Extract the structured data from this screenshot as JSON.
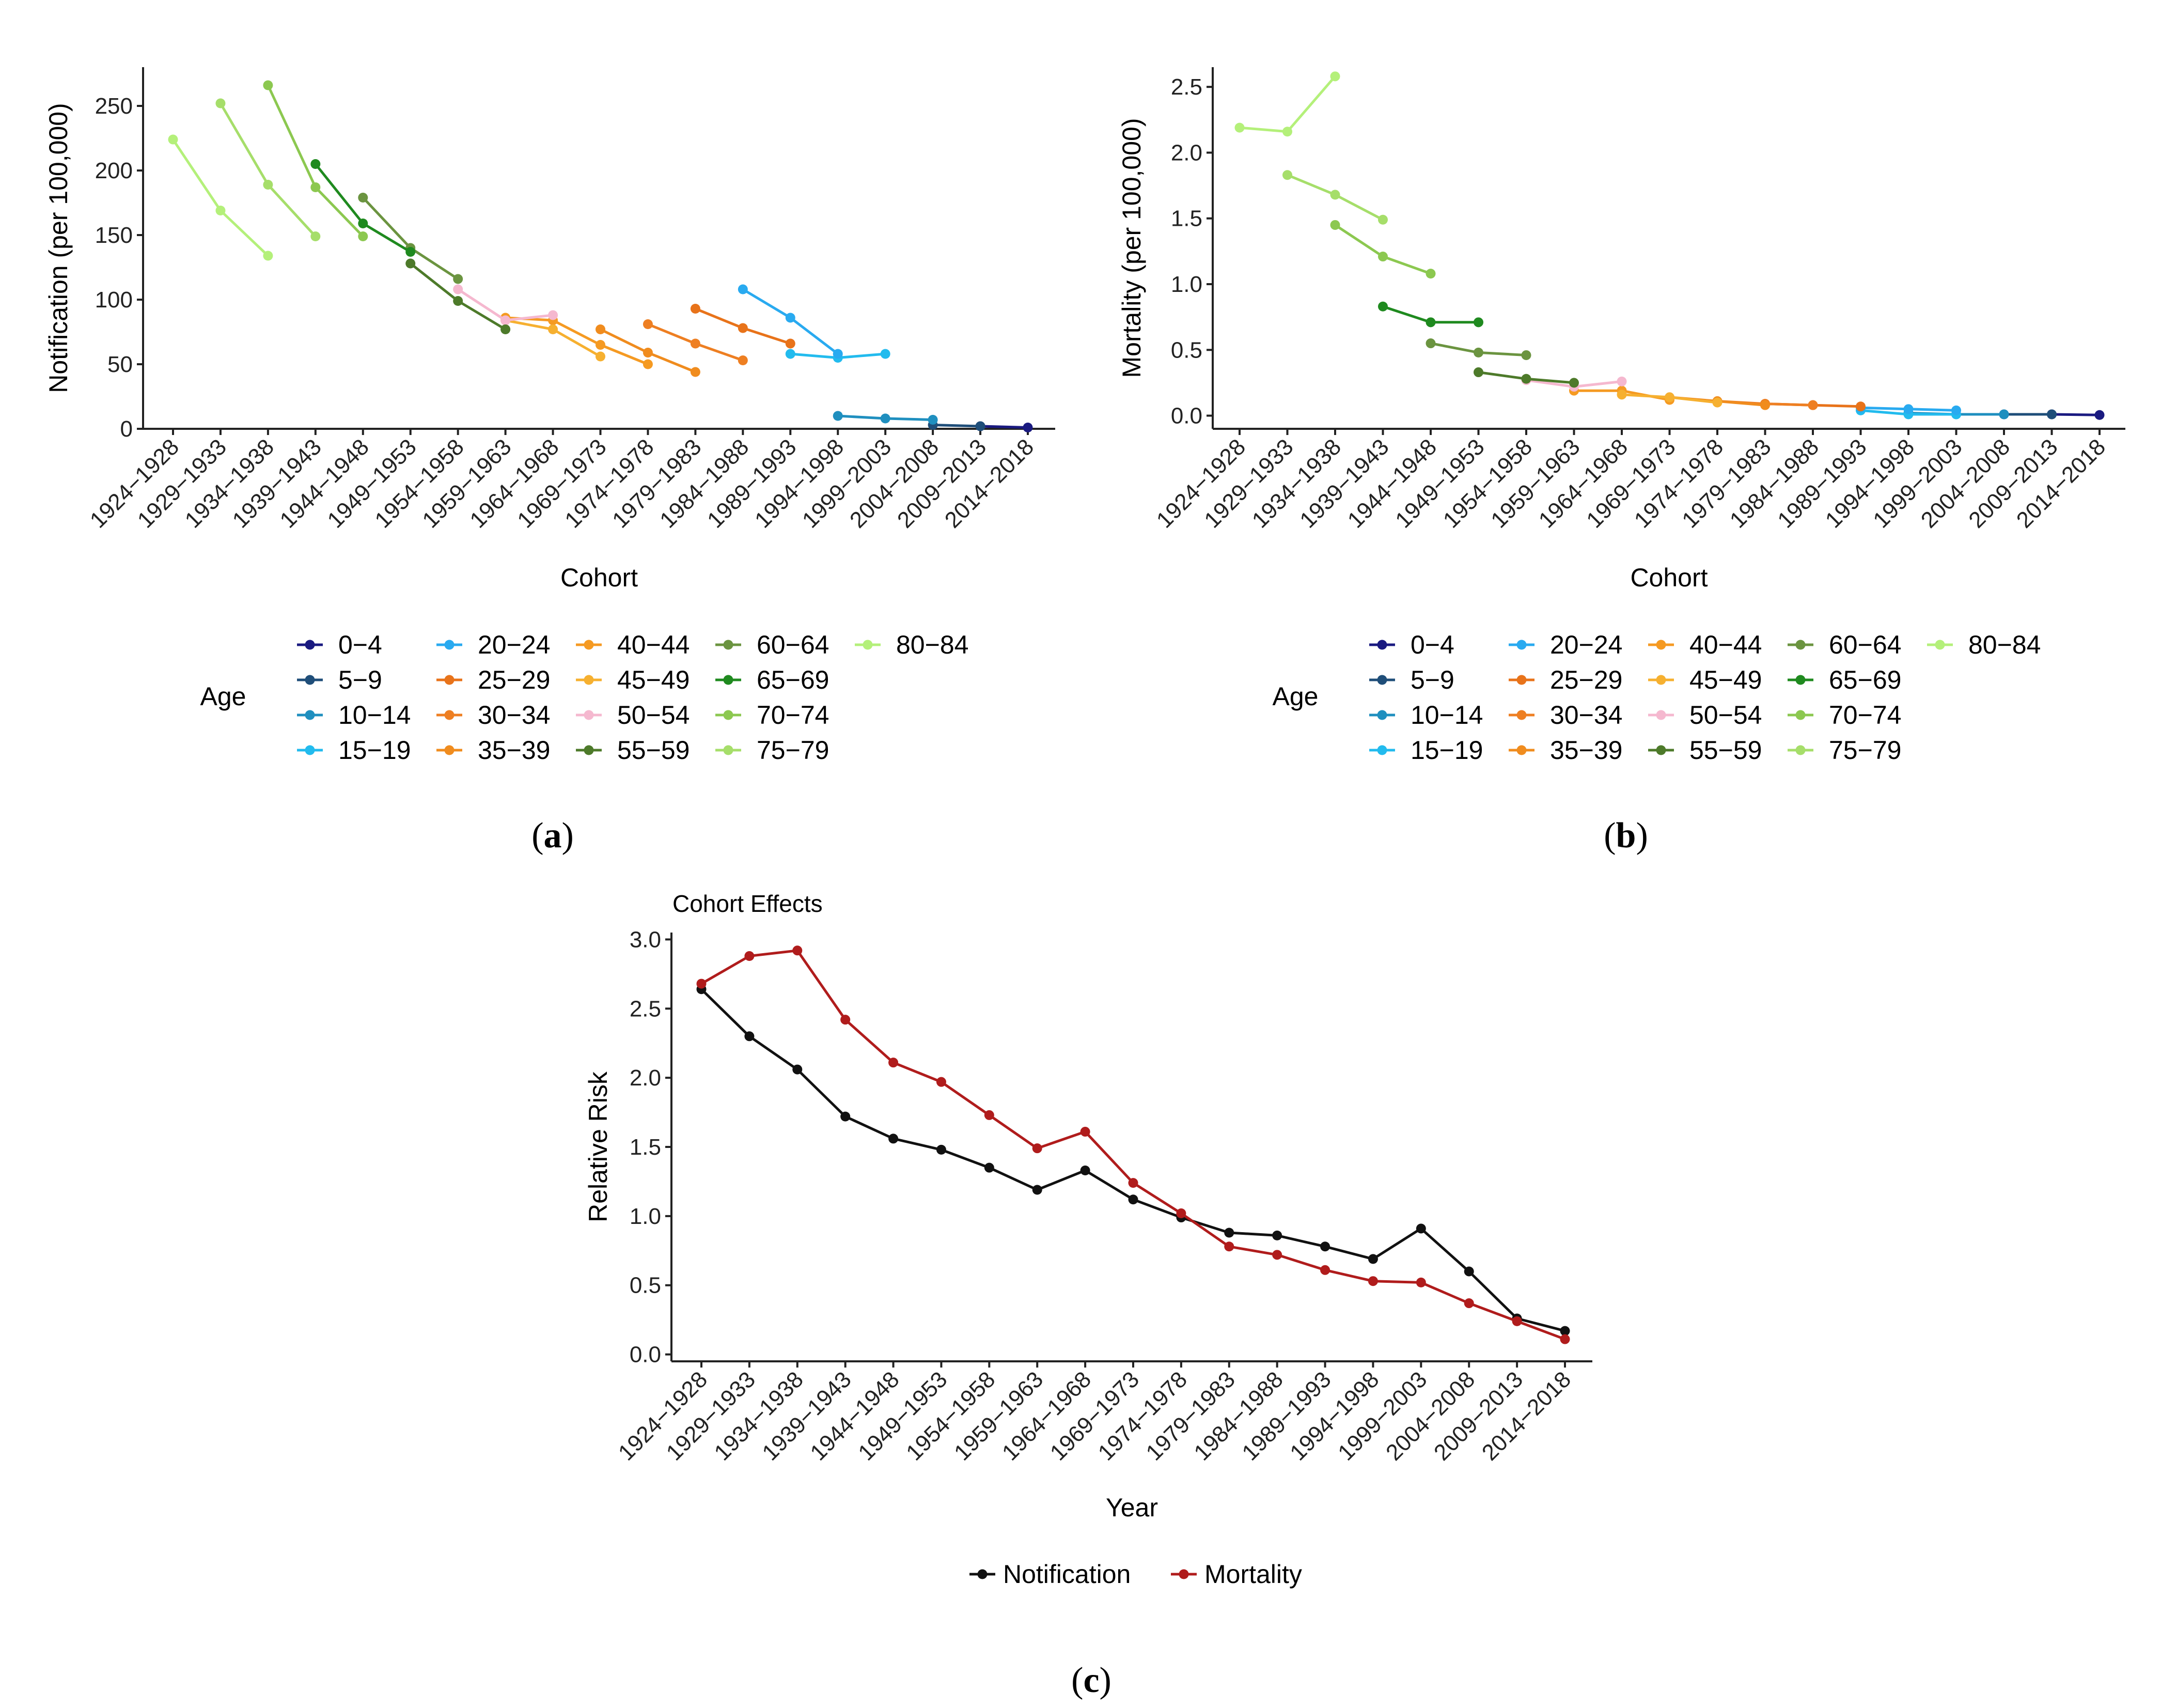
{
  "chart_data": [
    {
      "id": "a",
      "type": "line",
      "panel_label": "a",
      "xlabel": "Cohort",
      "ylabel": "Notification (per 100,000)",
      "ylim": [
        0,
        280
      ],
      "yticks": [
        0,
        50,
        100,
        150,
        200,
        250
      ],
      "categories": [
        "1924−1928",
        "1929−1933",
        "1934−1938",
        "1939−1943",
        "1944−1948",
        "1949−1953",
        "1954−1958",
        "1959−1963",
        "1964−1968",
        "1969−1973",
        "1974−1978",
        "1979−1983",
        "1984−1988",
        "1989−1993",
        "1994−1998",
        "1999−2003",
        "2004−2008",
        "2009−2013",
        "2014−2018"
      ],
      "legend_title": "Age",
      "series": [
        {
          "name": "0−4",
          "color": "#1a1a80",
          "points": [
            [
              17,
              2
            ],
            [
              18,
              1
            ]
          ]
        },
        {
          "name": "5−9",
          "color": "#1f4e79",
          "points": [
            [
              16,
              3
            ],
            [
              17,
              2
            ]
          ]
        },
        {
          "name": "10−14",
          "color": "#1f8fbf",
          "points": [
            [
              14,
              10
            ],
            [
              15,
              8
            ],
            [
              16,
              7
            ]
          ]
        },
        {
          "name": "15−19",
          "color": "#22bbee",
          "points": [
            [
              13,
              58
            ],
            [
              14,
              55
            ],
            [
              15,
              58
            ]
          ]
        },
        {
          "name": "20−24",
          "color": "#29aaf0",
          "points": [
            [
              12,
              108
            ],
            [
              13,
              86
            ],
            [
              14,
              58
            ]
          ]
        },
        {
          "name": "25−29",
          "color": "#e8731a",
          "points": [
            [
              11,
              93
            ],
            [
              12,
              78
            ],
            [
              13,
              66
            ]
          ]
        },
        {
          "name": "30−34",
          "color": "#ee7f22",
          "points": [
            [
              10,
              81
            ],
            [
              11,
              66
            ],
            [
              12,
              53
            ]
          ]
        },
        {
          "name": "35−39",
          "color": "#f08c1e",
          "points": [
            [
              9,
              77
            ],
            [
              10,
              59
            ],
            [
              11,
              44
            ]
          ]
        },
        {
          "name": "40−44",
          "color": "#f59a22",
          "points": [
            [
              7,
              86
            ],
            [
              8,
              84
            ],
            [
              9,
              65
            ],
            [
              10,
              50
            ]
          ]
        },
        {
          "name": "45−49",
          "color": "#f6b030",
          "points": [
            [
              7,
              84
            ],
            [
              8,
              77
            ],
            [
              9,
              56
            ]
          ]
        },
        {
          "name": "50−54",
          "color": "#f5b8cf",
          "points": [
            [
              6,
              108
            ],
            [
              7,
              84
            ],
            [
              8,
              88
            ]
          ]
        },
        {
          "name": "55−59",
          "color": "#4d7a2a",
          "points": [
            [
              5,
              128
            ],
            [
              6,
              99
            ],
            [
              7,
              77
            ]
          ]
        },
        {
          "name": "60−64",
          "color": "#6b9440",
          "points": [
            [
              4,
              179
            ],
            [
              5,
              140
            ],
            [
              6,
              116
            ]
          ]
        },
        {
          "name": "65−69",
          "color": "#1f8a1f",
          "points": [
            [
              3,
              205
            ],
            [
              4,
              159
            ],
            [
              5,
              137
            ]
          ]
        },
        {
          "name": "70−74",
          "color": "#8cc850",
          "points": [
            [
              2,
              266
            ],
            [
              3,
              187
            ],
            [
              4,
              149
            ]
          ]
        },
        {
          "name": "75−79",
          "color": "#a6de6a",
          "points": [
            [
              1,
              252
            ],
            [
              2,
              189
            ],
            [
              3,
              149
            ]
          ]
        },
        {
          "name": "80−84",
          "color": "#b4f07a",
          "points": [
            [
              0,
              224
            ],
            [
              1,
              169
            ],
            [
              2,
              134
            ]
          ]
        }
      ]
    },
    {
      "id": "b",
      "type": "line",
      "panel_label": "b",
      "xlabel": "Cohort",
      "ylabel": "Mortality (per 100,000)",
      "ylim": [
        -0.1,
        2.65
      ],
      "yticks": [
        0.0,
        0.5,
        1.0,
        1.5,
        2.0,
        2.5
      ],
      "ytick_labels": [
        "0.0",
        "0.5",
        "1.0",
        "1.5",
        "2.0",
        "2.5"
      ],
      "categories": [
        "1924−1928",
        "1929−1933",
        "1934−1938",
        "1939−1943",
        "1944−1948",
        "1949−1953",
        "1954−1958",
        "1959−1963",
        "1964−1968",
        "1969−1973",
        "1974−1978",
        "1979−1983",
        "1984−1988",
        "1989−1993",
        "1994−1998",
        "1999−2003",
        "2004−2008",
        "2009−2013",
        "2014−2018"
      ],
      "legend_title": "Age",
      "series": [
        {
          "name": "0−4",
          "color": "#1a1a80",
          "points": [
            [
              17,
              0.01
            ],
            [
              18,
              0.005
            ]
          ]
        },
        {
          "name": "5−9",
          "color": "#1f4e79",
          "points": [
            [
              16,
              0.01
            ],
            [
              17,
              0.01
            ]
          ]
        },
        {
          "name": "10−14",
          "color": "#1f8fbf",
          "points": [
            [
              14,
              0.02
            ],
            [
              15,
              0.01
            ],
            [
              16,
              0.01
            ]
          ]
        },
        {
          "name": "15−19",
          "color": "#22bbee",
          "points": [
            [
              13,
              0.04
            ],
            [
              14,
              0.01
            ],
            [
              15,
              0.01
            ]
          ]
        },
        {
          "name": "20−24",
          "color": "#29aaf0",
          "points": [
            [
              13,
              0.06
            ],
            [
              14,
              0.05
            ],
            [
              15,
              0.04
            ]
          ]
        },
        {
          "name": "25−29",
          "color": "#e8731a",
          "points": [
            [
              11,
              0.09
            ],
            [
              12,
              0.08
            ],
            [
              13,
              0.07
            ]
          ]
        },
        {
          "name": "30−34",
          "color": "#ee7f22",
          "points": [
            [
              10,
              0.11
            ],
            [
              11,
              0.09
            ],
            [
              12,
              0.08
            ]
          ]
        },
        {
          "name": "35−39",
          "color": "#f08c1e",
          "points": [
            [
              9,
              0.14
            ],
            [
              10,
              0.11
            ],
            [
              11,
              0.08
            ]
          ]
        },
        {
          "name": "40−44",
          "color": "#f59a22",
          "points": [
            [
              7,
              0.19
            ],
            [
              8,
              0.19
            ],
            [
              9,
              0.12
            ]
          ]
        },
        {
          "name": "45−49",
          "color": "#f6b030",
          "points": [
            [
              8,
              0.16
            ],
            [
              9,
              0.14
            ],
            [
              10,
              0.1
            ]
          ]
        },
        {
          "name": "50−54",
          "color": "#f5b8cf",
          "points": [
            [
              6,
              0.27
            ],
            [
              7,
              0.22
            ],
            [
              8,
              0.26
            ]
          ]
        },
        {
          "name": "55−59",
          "color": "#4d7a2a",
          "points": [
            [
              5,
              0.33
            ],
            [
              6,
              0.28
            ],
            [
              7,
              0.25
            ]
          ]
        },
        {
          "name": "60−64",
          "color": "#6b9440",
          "points": [
            [
              4,
              0.55
            ],
            [
              5,
              0.48
            ],
            [
              6,
              0.46
            ]
          ]
        },
        {
          "name": "65−69",
          "color": "#1f8a1f",
          "points": [
            [
              3,
              0.83
            ],
            [
              4,
              0.71
            ],
            [
              5,
              0.71
            ]
          ]
        },
        {
          "name": "70−74",
          "color": "#8cc850",
          "points": [
            [
              2,
              1.45
            ],
            [
              3,
              1.21
            ],
            [
              4,
              1.08
            ]
          ]
        },
        {
          "name": "75−79",
          "color": "#a6de6a",
          "points": [
            [
              1,
              1.83
            ],
            [
              2,
              1.68
            ],
            [
              3,
              1.49
            ]
          ]
        },
        {
          "name": "80−84",
          "color": "#b4f07a",
          "points": [
            [
              0,
              2.19
            ],
            [
              1,
              2.16
            ],
            [
              2,
              2.58
            ]
          ]
        }
      ]
    },
    {
      "id": "c",
      "type": "line",
      "panel_label": "c",
      "title": "Cohort Effects",
      "xlabel": "Year",
      "ylabel": "Relative Risk",
      "ylim": [
        -0.05,
        3.05
      ],
      "yticks": [
        0.0,
        0.5,
        1.0,
        1.5,
        2.0,
        2.5,
        3.0
      ],
      "ytick_labels": [
        "0.0",
        "0.5",
        "1.0",
        "1.5",
        "2.0",
        "2.5",
        "3.0"
      ],
      "categories": [
        "1924−1928",
        "1929−1933",
        "1934−1938",
        "1939−1943",
        "1944−1948",
        "1949−1953",
        "1954−1958",
        "1959−1963",
        "1964−1968",
        "1969−1973",
        "1974−1978",
        "1979−1983",
        "1984−1988",
        "1989−1993",
        "1994−1998",
        "1999−2003",
        "2004−2008",
        "2009−2013",
        "2014−2018"
      ],
      "legend_position": "bottom",
      "series": [
        {
          "name": "Notification",
          "color": "#111111",
          "values": [
            2.64,
            2.3,
            2.06,
            1.72,
            1.56,
            1.48,
            1.35,
            1.19,
            1.33,
            1.12,
            0.99,
            0.88,
            0.86,
            0.78,
            0.69,
            0.91,
            0.6,
            0.26,
            0.17
          ]
        },
        {
          "name": "Mortality",
          "color": "#b01c1c",
          "values": [
            2.68,
            2.88,
            2.92,
            2.42,
            2.11,
            1.97,
            1.73,
            1.49,
            1.61,
            1.24,
            1.02,
            0.78,
            0.72,
            0.61,
            0.53,
            0.52,
            0.37,
            0.24,
            0.11
          ]
        }
      ]
    }
  ]
}
